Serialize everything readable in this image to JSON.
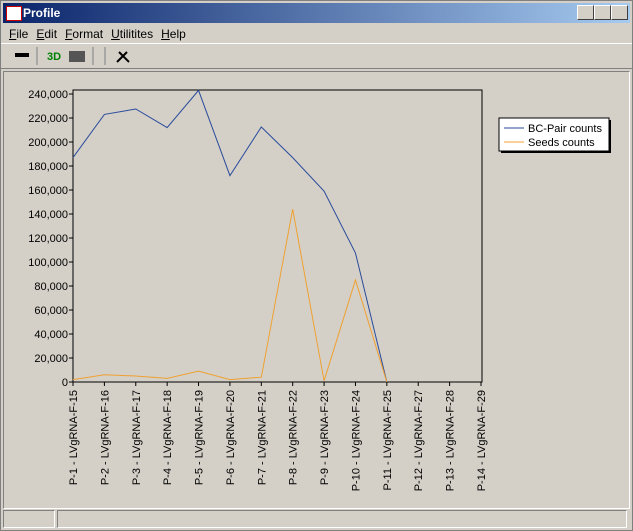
{
  "window": {
    "title": "Profile",
    "menu": [
      "File",
      "Edit",
      "Format",
      "Utilitites",
      "Help"
    ],
    "toolbar_3d": "3D"
  },
  "chart_data": {
    "type": "line",
    "categories": [
      "P-1 - LVgRNA-F-15",
      "P-2 - LVgRNA-F-16",
      "P-3 - LVgRNA-F-17",
      "P-4 - LVgRNA-F-18",
      "P-5 - LVgRNA-F-19",
      "P-6 - LVgRNA-F-20",
      "P-7 - LVgRNA-F-21",
      "P-8 - LVgRNA-F-22",
      "P-9 - LVgRNA-F-23",
      "P-10 - LVgRNA-F-24",
      "P-11 - LVgRNA-F-25",
      "P-12 - LVgRNA-F-27",
      "P-13 - LVgRNA-F-28",
      "P-14 - LVgRNA-F-29"
    ],
    "series": [
      {
        "name": "BC-Pair counts",
        "color": "#2a4b9b",
        "values": [
          187000,
          223000,
          227500,
          212000,
          243000,
          172000,
          212500,
          187000,
          159000,
          107500,
          0,
          null,
          null,
          null
        ]
      },
      {
        "name": "Seeds counts",
        "color": "#f0a030",
        "values": [
          2000,
          6000,
          5000,
          3000,
          9000,
          2000,
          4000,
          144000,
          1000,
          85000,
          0,
          null,
          null,
          null
        ]
      }
    ],
    "ylim": [
      0,
      240000
    ],
    "yticks": [
      0,
      {
        "value": 20000,
        "label": "20,000"
      },
      {
        "value": 40000,
        "label": "40,000"
      },
      {
        "value": 60000,
        "label": "60,000"
      },
      {
        "value": 80000,
        "label": "80,000"
      },
      {
        "value": 100000,
        "label": "100,000"
      },
      {
        "value": 120000,
        "label": "120,000"
      },
      {
        "value": 140000,
        "label": "140,000"
      },
      {
        "value": 160000,
        "label": "160,000"
      },
      {
        "value": 180000,
        "label": "180,000"
      },
      {
        "value": 200000,
        "label": "200,000"
      },
      {
        "value": 220000,
        "label": "220,000"
      },
      {
        "value": 240000,
        "label": "240,000"
      }
    ],
    "grid": false,
    "legend": "right"
  }
}
